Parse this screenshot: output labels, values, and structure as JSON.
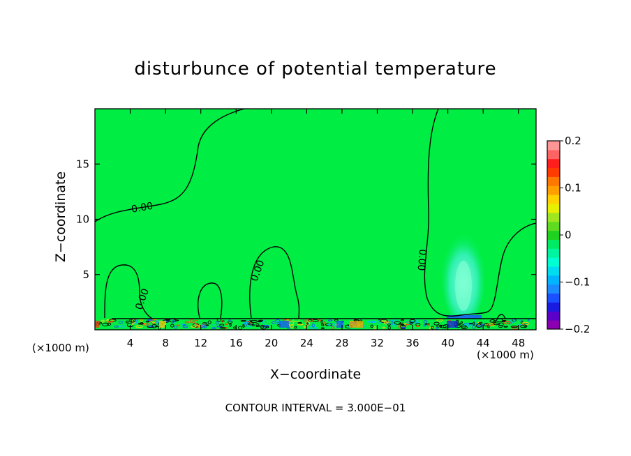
{
  "chart_data": {
    "type": "heatmap",
    "title": "disturbunce of potential temperature",
    "xlabel": "X−coordinate",
    "ylabel": "Z−coordinate",
    "x_unit_label": "(×1000 m)",
    "xlim": [
      0,
      50
    ],
    "ylim": [
      0,
      20
    ],
    "x_ticks": [
      "4",
      "8",
      "12",
      "16",
      "20",
      "24",
      "28",
      "32",
      "36",
      "40",
      "44",
      "48"
    ],
    "y_ticks": [
      "5",
      "10",
      "15"
    ],
    "colorbar": {
      "range": [
        -0.2,
        0.2
      ],
      "labels": [
        "0.2",
        "0.1",
        "0",
        "−0.1",
        "−0.2"
      ],
      "colors": [
        "#8b00b0",
        "#5a00c8",
        "#1a1ae0",
        "#1a50ff",
        "#1a8cff",
        "#00b4ff",
        "#00dcf0",
        "#00ffd2",
        "#00f5a0",
        "#00eb64",
        "#20d220",
        "#60dc20",
        "#a0e620",
        "#e6f000",
        "#ffd200",
        "#ffa000",
        "#ff7800",
        "#ff3c00",
        "#ff1e1e",
        "#ff6464",
        "#ff9696"
      ]
    },
    "contour_labels": [
      "0.00",
      "0.00",
      "0.00",
      "0.00"
    ],
    "footer": "CONTOUR INTERVAL = 3.000E−01",
    "grid": false
  }
}
